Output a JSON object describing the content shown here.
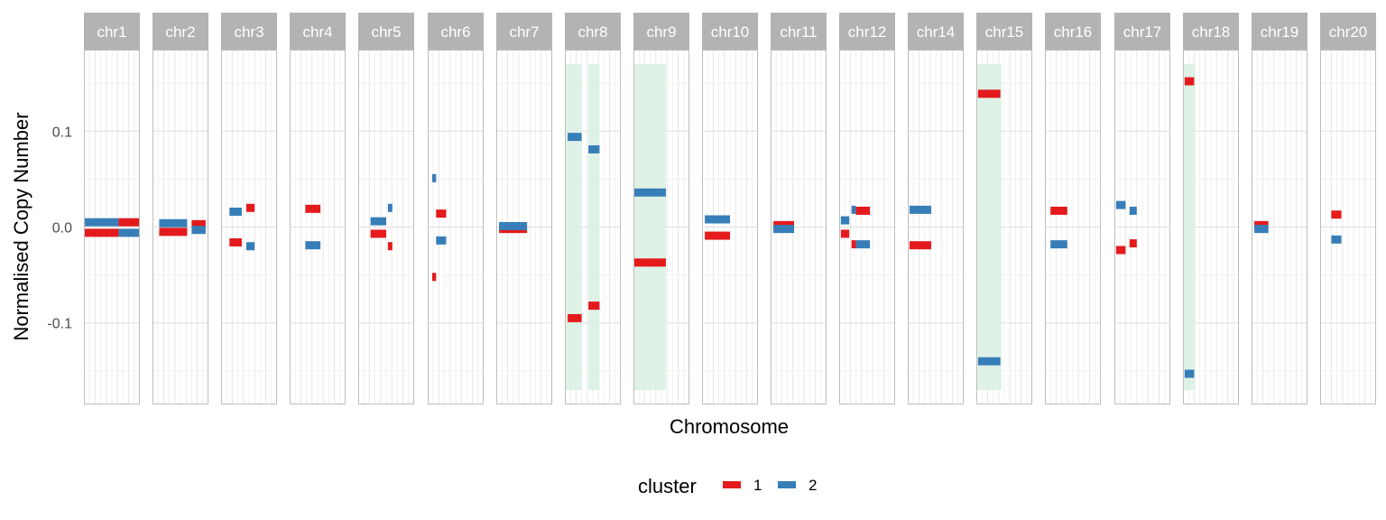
{
  "chart_data": {
    "type": "segment",
    "xlabel": "Chromosome",
    "ylabel": "Normalised Copy Number",
    "ylim": [
      -0.185,
      0.185
    ],
    "yticks": [
      {
        "value": 0.1,
        "label": "0.1"
      },
      {
        "value": 0.0,
        "label": "0.0"
      },
      {
        "value": -0.1,
        "label": "-0.1"
      }
    ],
    "grid": true,
    "legend": {
      "title": "cluster",
      "position": "bottom",
      "entries": [
        {
          "label": "1",
          "color": "#e41a1c"
        },
        {
          "label": "2",
          "color": "#377eb8"
        }
      ]
    },
    "highlight_color": "#d9f0e3",
    "highlight_range": [
      -0.17,
      0.17
    ],
    "panels": [
      {
        "label": "chr1",
        "highlights": [],
        "segments": [
          {
            "cluster": "2",
            "x": [
              0.0,
              0.62
            ],
            "y": 0.005
          },
          {
            "cluster": "1",
            "x": [
              0.0,
              0.62
            ],
            "y": -0.006
          },
          {
            "cluster": "1",
            "x": [
              0.62,
              1.0
            ],
            "y": 0.005
          },
          {
            "cluster": "2",
            "x": [
              0.62,
              1.0
            ],
            "y": -0.006
          }
        ]
      },
      {
        "label": "chr2",
        "highlights": [],
        "segments": [
          {
            "cluster": "2",
            "x": [
              0.12,
              0.62
            ],
            "y": 0.004
          },
          {
            "cluster": "1",
            "x": [
              0.12,
              0.62
            ],
            "y": -0.005
          },
          {
            "cluster": "1",
            "x": [
              0.7,
              0.95
            ],
            "y": 0.003
          },
          {
            "cluster": "2",
            "x": [
              0.7,
              0.95
            ],
            "y": -0.003
          }
        ]
      },
      {
        "label": "chr3",
        "highlights": [],
        "segments": [
          {
            "cluster": "2",
            "x": [
              0.15,
              0.37
            ],
            "y": 0.016
          },
          {
            "cluster": "1",
            "x": [
              0.15,
              0.37
            ],
            "y": -0.016
          },
          {
            "cluster": "1",
            "x": [
              0.45,
              0.6
            ],
            "y": 0.02
          },
          {
            "cluster": "2",
            "x": [
              0.45,
              0.6
            ],
            "y": -0.02
          }
        ]
      },
      {
        "label": "chr4",
        "highlights": [],
        "segments": [
          {
            "cluster": "1",
            "x": [
              0.28,
              0.55
            ],
            "y": 0.019
          },
          {
            "cluster": "2",
            "x": [
              0.28,
              0.55
            ],
            "y": -0.019
          }
        ]
      },
      {
        "label": "chr5",
        "highlights": [],
        "segments": [
          {
            "cluster": "2",
            "x": [
              0.22,
              0.5
            ],
            "y": 0.006
          },
          {
            "cluster": "1",
            "x": [
              0.22,
              0.5
            ],
            "y": -0.007
          },
          {
            "cluster": "2",
            "x": [
              0.53,
              0.61
            ],
            "y": 0.02
          },
          {
            "cluster": "1",
            "x": [
              0.53,
              0.61
            ],
            "y": -0.02
          }
        ]
      },
      {
        "label": "chr6",
        "highlights": [],
        "segments": [
          {
            "cluster": "2",
            "x": [
              0.08,
              0.15
            ],
            "y": 0.051
          },
          {
            "cluster": "1",
            "x": [
              0.08,
              0.15
            ],
            "y": -0.052
          },
          {
            "cluster": "1",
            "x": [
              0.15,
              0.33
            ],
            "y": 0.014
          },
          {
            "cluster": "2",
            "x": [
              0.15,
              0.33
            ],
            "y": -0.014
          }
        ]
      },
      {
        "label": "chr7",
        "highlights": [],
        "segments": [
          {
            "cluster": "1",
            "x": [
              0.05,
              0.55
            ],
            "y": -0.002
          },
          {
            "cluster": "2",
            "x": [
              0.05,
              0.55
            ],
            "y": 0.001
          }
        ]
      },
      {
        "label": "chr8",
        "highlights": [
          [
            0.0,
            0.3
          ],
          [
            0.42,
            0.62
          ]
        ],
        "segments": [
          {
            "cluster": "2",
            "x": [
              0.05,
              0.3
            ],
            "y": 0.094
          },
          {
            "cluster": "1",
            "x": [
              0.05,
              0.3
            ],
            "y": -0.095
          },
          {
            "cluster": "2",
            "x": [
              0.42,
              0.62
            ],
            "y": 0.081
          },
          {
            "cluster": "1",
            "x": [
              0.42,
              0.62
            ],
            "y": -0.082
          }
        ]
      },
      {
        "label": "chr9",
        "highlights": [
          [
            0.0,
            0.58
          ]
        ],
        "segments": [
          {
            "cluster": "2",
            "x": [
              0.0,
              0.58
            ],
            "y": 0.036
          },
          {
            "cluster": "1",
            "x": [
              0.0,
              0.58
            ],
            "y": -0.037
          }
        ]
      },
      {
        "label": "chr10",
        "highlights": [],
        "segments": [
          {
            "cluster": "2",
            "x": [
              0.05,
              0.5
            ],
            "y": 0.008
          },
          {
            "cluster": "1",
            "x": [
              0.05,
              0.5
            ],
            "y": -0.009
          }
        ]
      },
      {
        "label": "chr11",
        "highlights": [],
        "segments": [
          {
            "cluster": "1",
            "x": [
              0.05,
              0.42
            ],
            "y": 0.002
          },
          {
            "cluster": "2",
            "x": [
              0.05,
              0.42
            ],
            "y": -0.002
          }
        ]
      },
      {
        "label": "chr12",
        "highlights": [],
        "segments": [
          {
            "cluster": "2",
            "x": [
              0.03,
              0.18
            ],
            "y": 0.007
          },
          {
            "cluster": "1",
            "x": [
              0.03,
              0.18
            ],
            "y": -0.007
          },
          {
            "cluster": "2",
            "x": [
              0.22,
              0.3
            ],
            "y": 0.018
          },
          {
            "cluster": "1",
            "x": [
              0.22,
              0.3
            ],
            "y": -0.018
          },
          {
            "cluster": "1",
            "x": [
              0.3,
              0.55
            ],
            "y": 0.017
          },
          {
            "cluster": "2",
            "x": [
              0.3,
              0.55
            ],
            "y": -0.018
          }
        ]
      },
      {
        "label": "chr14",
        "highlights": [],
        "segments": [
          {
            "cluster": "2",
            "x": [
              0.03,
              0.42
            ],
            "y": 0.018
          },
          {
            "cluster": "1",
            "x": [
              0.03,
              0.42
            ],
            "y": -0.019
          }
        ]
      },
      {
        "label": "chr15",
        "highlights": [
          [
            0.0,
            0.45
          ]
        ],
        "segments": [
          {
            "cluster": "1",
            "x": [
              0.03,
              0.43
            ],
            "y": 0.139
          },
          {
            "cluster": "2",
            "x": [
              0.03,
              0.43
            ],
            "y": -0.14
          }
        ]
      },
      {
        "label": "chr16",
        "highlights": [],
        "segments": [
          {
            "cluster": "1",
            "x": [
              0.1,
              0.4
            ],
            "y": 0.017
          },
          {
            "cluster": "2",
            "x": [
              0.1,
              0.4
            ],
            "y": -0.018
          }
        ]
      },
      {
        "label": "chr17",
        "highlights": [],
        "segments": [
          {
            "cluster": "2",
            "x": [
              0.03,
              0.2
            ],
            "y": 0.023
          },
          {
            "cluster": "1",
            "x": [
              0.03,
              0.2
            ],
            "y": -0.024
          },
          {
            "cluster": "2",
            "x": [
              0.27,
              0.4
            ],
            "y": 0.017
          },
          {
            "cluster": "1",
            "x": [
              0.27,
              0.4
            ],
            "y": -0.017
          }
        ]
      },
      {
        "label": "chr18",
        "highlights": [
          [
            0.0,
            0.22
          ]
        ],
        "segments": [
          {
            "cluster": "1",
            "x": [
              0.03,
              0.2
            ],
            "y": 0.152
          },
          {
            "cluster": "2",
            "x": [
              0.03,
              0.2
            ],
            "y": -0.153
          }
        ]
      },
      {
        "label": "chr19",
        "highlights": [],
        "segments": [
          {
            "cluster": "1",
            "x": [
              0.05,
              0.3
            ],
            "y": 0.002
          },
          {
            "cluster": "2",
            "x": [
              0.05,
              0.3
            ],
            "y": -0.002
          }
        ]
      },
      {
        "label": "chr20",
        "highlights": [],
        "segments": [
          {
            "cluster": "1",
            "x": [
              0.2,
              0.38
            ],
            "y": 0.013
          },
          {
            "cluster": "2",
            "x": [
              0.2,
              0.38
            ],
            "y": -0.013
          }
        ]
      }
    ]
  }
}
